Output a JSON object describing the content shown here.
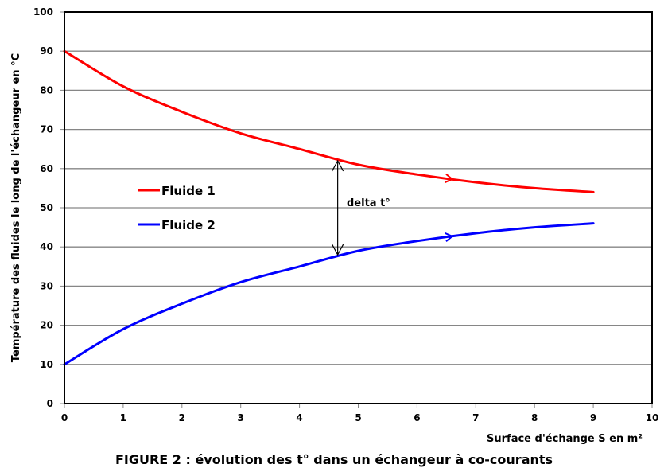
{
  "chart_data": {
    "type": "line",
    "title": "FIGURE 2 : évolution des t° dans un échangeur à co-courants",
    "xlabel": "Surface d'échange S en m²",
    "ylabel": "Température des fluides le long de l'échangeur en °C",
    "xlim": [
      0,
      10
    ],
    "ylim": [
      0,
      100
    ],
    "x_ticks": [
      0,
      1,
      2,
      3,
      4,
      5,
      6,
      7,
      8,
      9,
      10
    ],
    "y_ticks": [
      0,
      10,
      20,
      30,
      40,
      50,
      60,
      70,
      80,
      90,
      100
    ],
    "grid": "horizontal",
    "legend_position": "inside-left",
    "x": [
      0,
      1,
      2,
      3,
      4,
      5,
      6,
      7,
      8,
      9
    ],
    "series": [
      {
        "name": "Fluide 1",
        "color": "#ff0000",
        "values": [
          90,
          81,
          74.5,
          69,
          65,
          61,
          58.5,
          56.5,
          55,
          54
        ]
      },
      {
        "name": "Fluide 2",
        "color": "#0000ff",
        "values": [
          10,
          19,
          25.5,
          31,
          35,
          39,
          41.5,
          43.5,
          45,
          46
        ]
      }
    ],
    "annotations": [
      {
        "text": "delta t°",
        "x": 4.65,
        "y_from": 38,
        "y_to": 62,
        "type": "double-arrow"
      },
      {
        "type": "flow-arrow",
        "series": "Fluide 1",
        "x": 6.6
      },
      {
        "type": "flow-arrow",
        "series": "Fluide 2",
        "x": 6.6
      }
    ]
  },
  "labels": {
    "xlabel": "Surface d'échange S en m²",
    "ylabel": "Température des fluides le long de l'échangeur en °C",
    "legend1": "Fluide 1",
    "legend2": "Fluide 2",
    "delta": "delta t°",
    "caption": "FIGURE 2 : évolution des t° dans un échangeur à co-courants"
  }
}
